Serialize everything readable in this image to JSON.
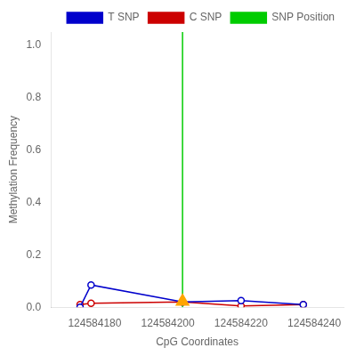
{
  "chart_data": {
    "type": "line",
    "xlabel": "CpG Coordinates",
    "ylabel": "Methylation Frequency",
    "xlim": [
      124584168,
      124584248
    ],
    "ylim": [
      0,
      1.05
    ],
    "xticks": [
      124584180,
      124584200,
      124584220,
      124584240
    ],
    "yticks": [
      {
        "value": 0.0,
        "label": "0.0"
      },
      0.2,
      0.4,
      0.6,
      0.8,
      {
        "value": 1.0,
        "label": "1.0"
      }
    ],
    "grid": false,
    "legend": "upper right",
    "series": [
      {
        "name": "T SNP",
        "color": "#0000CC",
        "marker": "circle",
        "line_style": "solid",
        "x": [
          124584176,
          124584179,
          124584204,
          124584220,
          124584237
        ],
        "values": [
          0.0,
          0.085,
          0.02,
          0.025,
          0.01
        ]
      },
      {
        "name": "C SNP",
        "color": "#CC0000",
        "marker": "circle",
        "line_style": "solid",
        "x": [
          124584176,
          124584179,
          124584204,
          124584220,
          124584237
        ],
        "values": [
          0.01,
          0.015,
          0.02,
          0.005,
          0.01
        ]
      },
      {
        "name": "SNP Position",
        "type": "vline",
        "color": "#00CC00",
        "line_style": "solid",
        "x": 124584204
      },
      {
        "type": "scatter",
        "marker": "triangle",
        "color": "#FFA500",
        "x": [
          124584204
        ],
        "values": [
          0.022
        ]
      }
    ]
  }
}
